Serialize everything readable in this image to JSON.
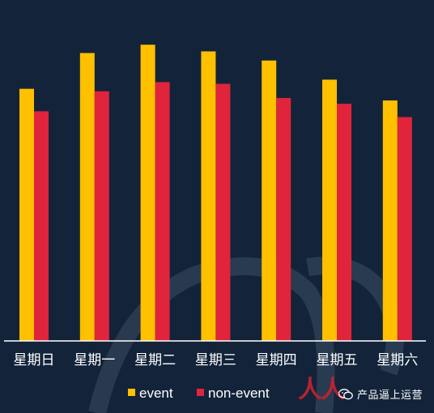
{
  "chart_data": {
    "type": "bar",
    "categories": [
      "星期日",
      "星期一",
      "星期二",
      "星期三",
      "星期四",
      "星期五",
      "星期六"
    ],
    "series": [
      {
        "name": "event",
        "color": "#ffc000",
        "values": [
          303,
          346,
          356,
          348,
          337,
          314,
          289
        ]
      },
      {
        "name": "non-event",
        "color": "#e0243c",
        "values": [
          276,
          300,
          311,
          309,
          292,
          285,
          269
        ]
      }
    ],
    "ylim": [
      0,
      400
    ],
    "grid": false,
    "legend_position": "bottom",
    "xlabel": "",
    "ylabel": ""
  },
  "colors": {
    "background": "#13243a",
    "axis": "#ffffff",
    "text": "#ffffff"
  },
  "watermark": {
    "text": "产品逼上运营",
    "icon": "wechat-icon",
    "logo_glyph": "人人"
  }
}
